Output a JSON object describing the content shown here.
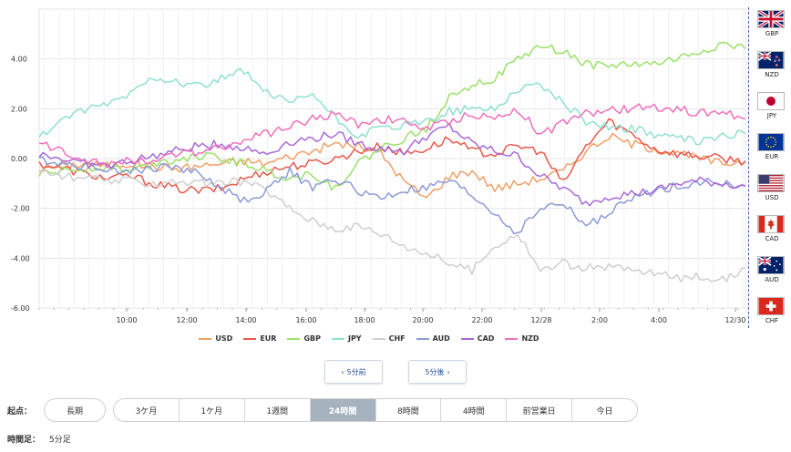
{
  "chart_data": {
    "type": "line",
    "x_tick_labels": [
      "10:00",
      "12:00",
      "14:00",
      "16:00",
      "18:00",
      "20:00",
      "22:00",
      "12/28",
      "2:00",
      "4:00",
      "12/30"
    ],
    "y_tick_labels": [
      "4.00",
      "2.00",
      "0.00",
      "-2.00",
      "-4.00",
      "-6.00"
    ],
    "ylim": [
      -6,
      6
    ],
    "grid": true,
    "legend_position": "bottom",
    "series": [
      {
        "name": "USD",
        "color": "#f0a067",
        "values": [
          -0.4,
          -0.3,
          -0.2,
          -0.3,
          -0.2,
          -0.3,
          -0.4,
          -0.3,
          -0.2,
          -0.1,
          -0.2,
          0.1,
          0.3,
          0.6,
          0.5,
          0.2,
          -0.9,
          -1.6,
          -0.7,
          -0.5,
          -1.2,
          -1.0,
          -0.8,
          -0.5,
          0.3,
          0.9,
          0.6,
          0.4,
          0.2,
          0.0,
          -0.2,
          -0.1
        ]
      },
      {
        "name": "EUR",
        "color": "#e8584c",
        "values": [
          -0.2,
          -0.4,
          -0.6,
          -0.8,
          -0.7,
          -1.0,
          -1.2,
          -1.3,
          -1.2,
          -0.8,
          -0.5,
          -0.3,
          -0.2,
          0.0,
          0.3,
          0.5,
          0.2,
          0.4,
          0.8,
          0.3,
          0.2,
          0.5,
          0.3,
          -1.0,
          0.5,
          1.5,
          1.0,
          0.4,
          0.2,
          0.1,
          0.0,
          -0.1
        ]
      },
      {
        "name": "GBP",
        "color": "#9ce06a",
        "values": [
          -0.6,
          -0.5,
          -0.4,
          -0.3,
          -0.5,
          -0.2,
          0.0,
          0.1,
          0.0,
          -0.2,
          -0.5,
          -0.8,
          -0.6,
          -1.2,
          -0.2,
          0.4,
          0.8,
          1.2,
          2.5,
          3.0,
          3.2,
          4.0,
          4.5,
          4.3,
          3.8,
          3.7,
          3.8,
          3.8,
          4.0,
          4.3,
          4.6,
          4.4
        ]
      },
      {
        "name": "JPY",
        "color": "#8fe0d0",
        "values": [
          0.8,
          1.6,
          1.9,
          2.2,
          2.6,
          3.3,
          3.1,
          2.9,
          3.2,
          3.5,
          2.6,
          2.2,
          2.6,
          1.6,
          0.9,
          1.2,
          1.3,
          1.5,
          1.9,
          2.0,
          2.0,
          2.8,
          3.0,
          2.2,
          1.5,
          1.3,
          1.2,
          1.0,
          0.8,
          0.7,
          0.9,
          1.0
        ]
      },
      {
        "name": "CHF",
        "color": "#cfcfcf",
        "values": [
          -0.5,
          -0.7,
          -0.8,
          -0.9,
          -0.9,
          -1.0,
          -0.9,
          -1.0,
          -1.0,
          -0.9,
          -1.3,
          -2.0,
          -2.5,
          -2.8,
          -2.7,
          -3.0,
          -3.5,
          -3.8,
          -4.2,
          -4.5,
          -3.5,
          -3.0,
          -4.5,
          -4.2,
          -4.4,
          -4.3,
          -4.5,
          -4.6,
          -4.8,
          -4.7,
          -4.9,
          -4.4
        ]
      },
      {
        "name": "AUD",
        "color": "#8c9ad8",
        "values": [
          0.0,
          -0.2,
          -0.3,
          -0.4,
          -0.5,
          -0.4,
          -0.3,
          -0.6,
          -1.2,
          -1.7,
          -1.3,
          -0.5,
          -1.2,
          -0.8,
          -1.3,
          -1.6,
          -1.3,
          -1.2,
          -0.9,
          -1.5,
          -2.2,
          -3.0,
          -2.0,
          -1.8,
          -2.7,
          -2.2,
          -1.6,
          -1.3,
          -1.1,
          -0.9,
          -1.0,
          -1.1
        ]
      },
      {
        "name": "CAD",
        "color": "#a86bd8",
        "values": [
          0.2,
          0.0,
          -0.2,
          -0.3,
          -0.1,
          0.1,
          0.3,
          0.5,
          0.6,
          0.4,
          0.2,
          0.7,
          0.8,
          1.0,
          0.6,
          0.4,
          0.3,
          0.9,
          1.3,
          0.6,
          0.3,
          0.1,
          -0.7,
          -1.2,
          -1.8,
          -1.5,
          -1.4,
          -1.3,
          -1.0,
          -0.9,
          -1.0,
          -1.1
        ]
      },
      {
        "name": "NZD",
        "color": "#f06fbd",
        "values": [
          0.6,
          0.3,
          0.0,
          -0.2,
          -0.1,
          0.0,
          0.1,
          0.3,
          0.5,
          0.7,
          1.0,
          1.3,
          1.6,
          1.8,
          1.4,
          1.6,
          1.5,
          1.2,
          1.5,
          1.8,
          1.6,
          2.0,
          1.0,
          1.4,
          1.8,
          1.9,
          2.0,
          2.1,
          2.0,
          1.8,
          1.9,
          1.6
        ]
      }
    ]
  },
  "buttons": {
    "prev_label": "5分前",
    "next_label": "5分後",
    "prev_icon": "chevron-left-icon",
    "next_icon": "chevron-right-icon"
  },
  "side_flags": [
    {
      "code": "GBP",
      "icon": "uk-flag-icon"
    },
    {
      "code": "NZD",
      "icon": "nz-flag-icon"
    },
    {
      "code": "JPY",
      "icon": "japan-flag-icon"
    },
    {
      "code": "EUR",
      "icon": "eu-flag-icon"
    },
    {
      "code": "USD",
      "icon": "us-flag-icon"
    },
    {
      "code": "CAD",
      "icon": "canada-flag-icon"
    },
    {
      "code": "AUD",
      "icon": "australia-flag-icon"
    },
    {
      "code": "CHF",
      "icon": "swiss-flag-icon"
    }
  ],
  "period": {
    "label": "起点：",
    "long_label": "長期",
    "options": [
      "3ケ月",
      "1ケ月",
      "1週間",
      "24時間",
      "8時間",
      "4時間",
      "前営業日",
      "今日"
    ],
    "active": "24時間"
  },
  "timeframe": {
    "label": "時間足：",
    "value": "5分足"
  }
}
